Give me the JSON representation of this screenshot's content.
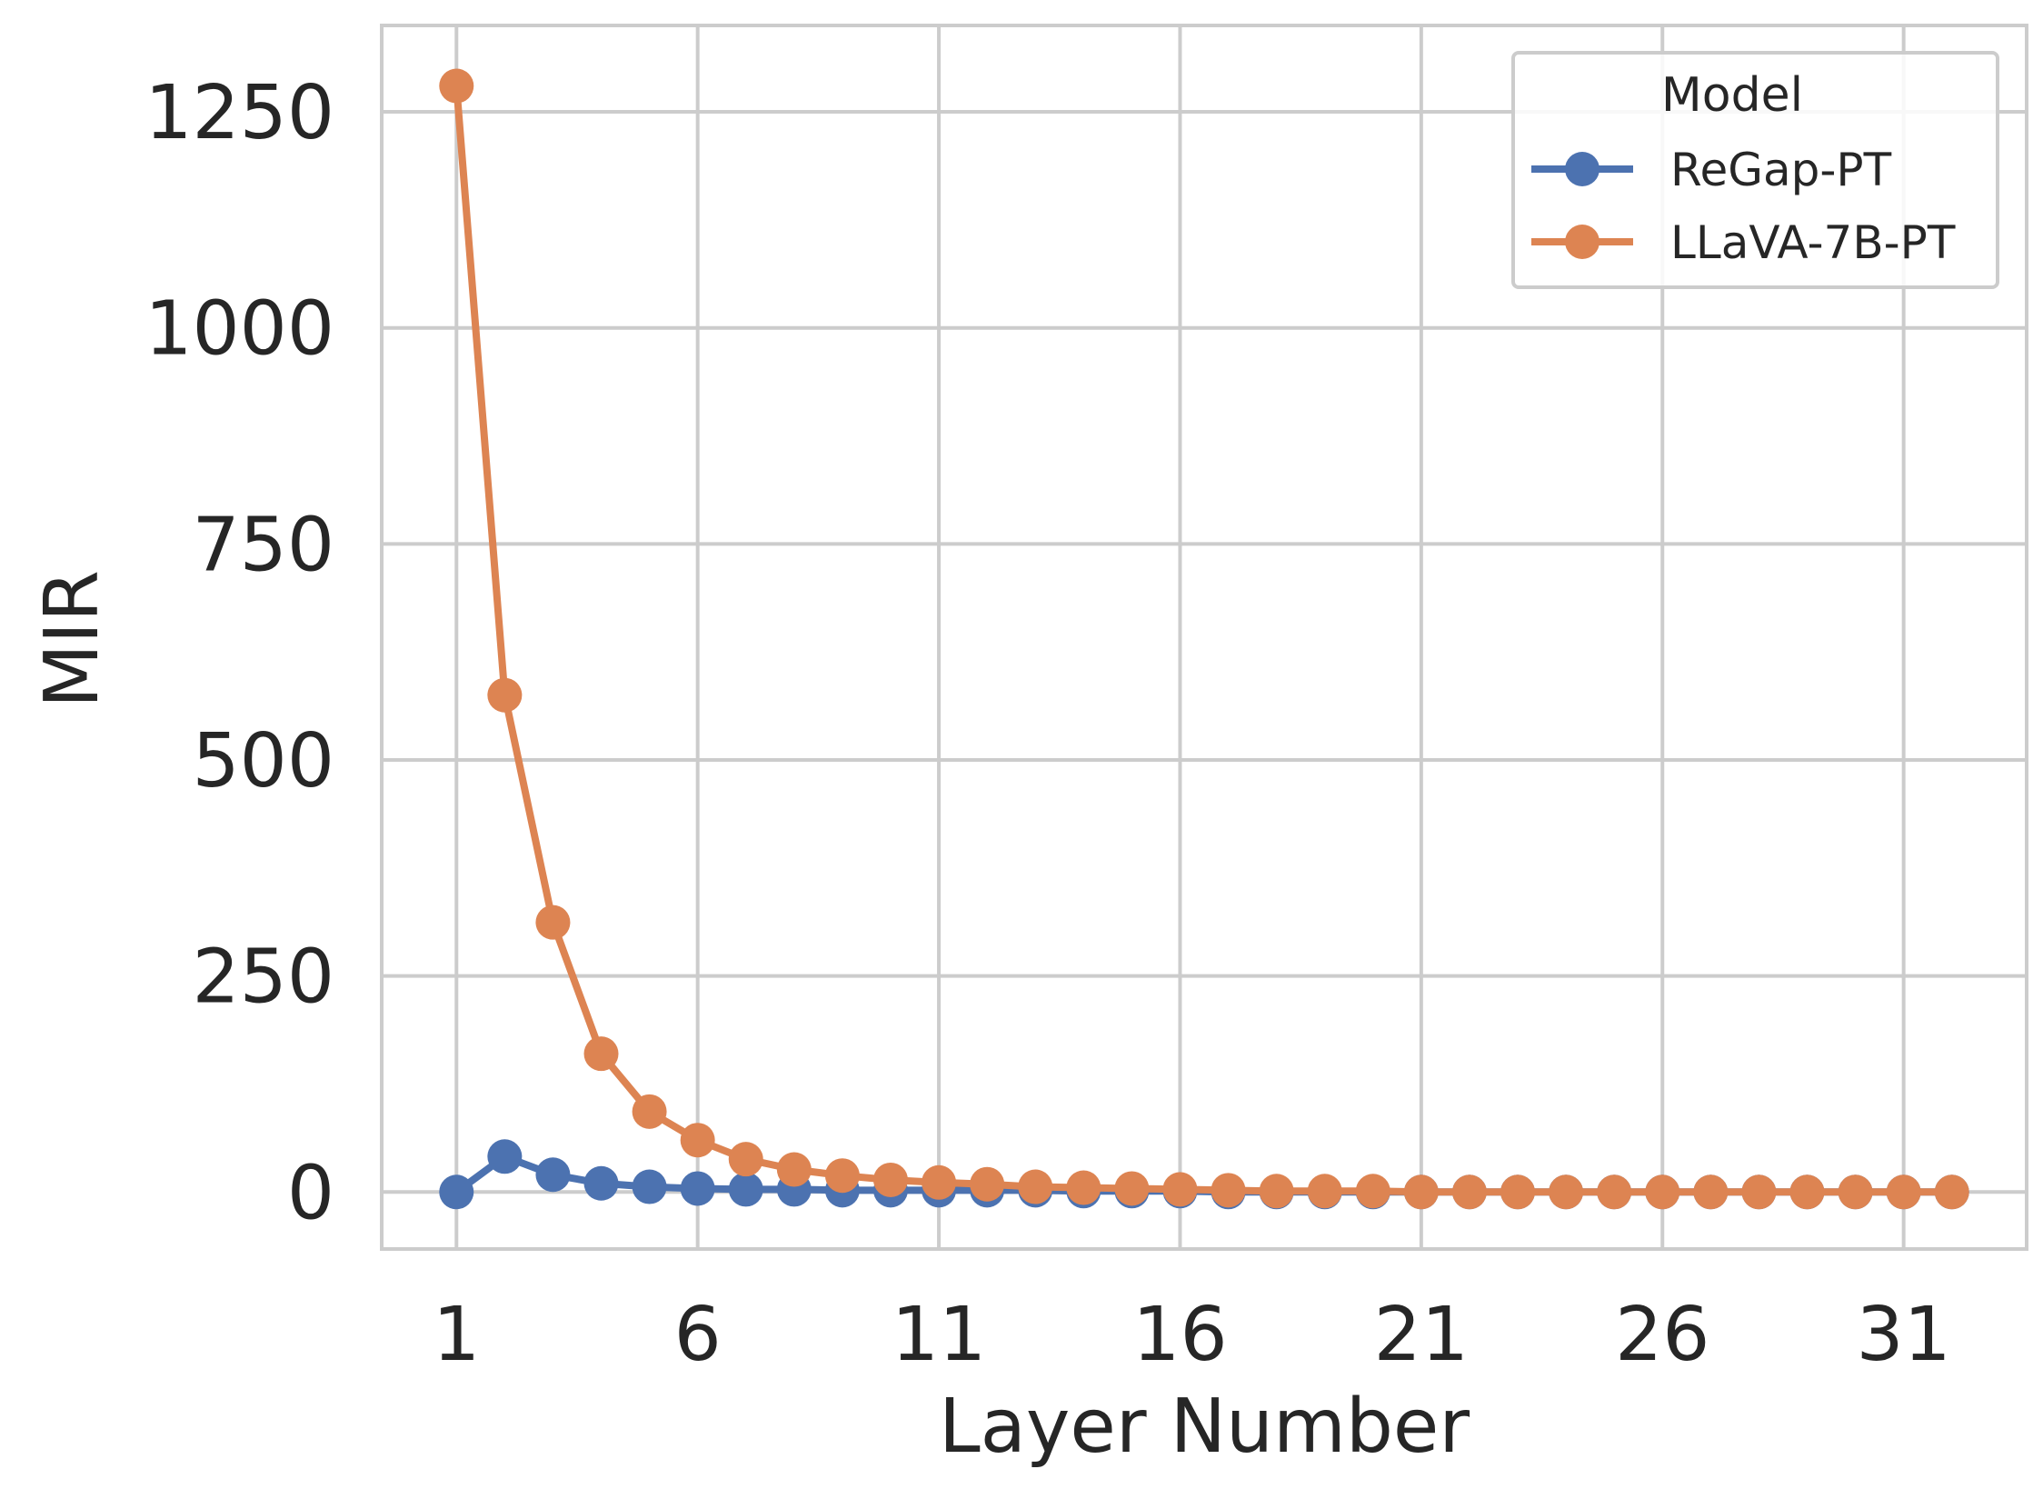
{
  "chart_data": {
    "type": "line",
    "xlabel": "Layer Number",
    "ylabel": "MIR",
    "xlim": [
      -0.55,
      33.55
    ],
    "ylim": [
      -66,
      1350
    ],
    "xticks": [
      1,
      6,
      11,
      16,
      21,
      26,
      31
    ],
    "yticks": [
      0,
      250,
      500,
      750,
      1000,
      1250
    ],
    "grid": true,
    "legend": {
      "title": "Model",
      "position": "top-right"
    },
    "x": [
      1,
      2,
      3,
      4,
      5,
      6,
      7,
      8,
      9,
      10,
      11,
      12,
      13,
      14,
      15,
      16,
      17,
      18,
      19,
      20,
      21,
      22,
      23,
      24,
      25,
      26,
      27,
      28,
      29,
      30,
      31,
      32
    ],
    "series": [
      {
        "name": "ReGap-PT",
        "color": "#4c72b0",
        "values": [
          0,
          41,
          20,
          10,
          6,
          4,
          3,
          3,
          2,
          2,
          2,
          2,
          2,
          1,
          1,
          1,
          0,
          0,
          0,
          0,
          0,
          0,
          0,
          0,
          0,
          0,
          0,
          0,
          0,
          0,
          0,
          0
        ]
      },
      {
        "name": "LLaVA-7B-PT",
        "color": "#dd8452",
        "values": [
          1280,
          575,
          312,
          160,
          93,
          60,
          38,
          26,
          19,
          14,
          11,
          9,
          6,
          5,
          4,
          3,
          2,
          1,
          1,
          1,
          0,
          0,
          0,
          0,
          0,
          0,
          0,
          0,
          0,
          0,
          0,
          0
        ]
      }
    ]
  }
}
